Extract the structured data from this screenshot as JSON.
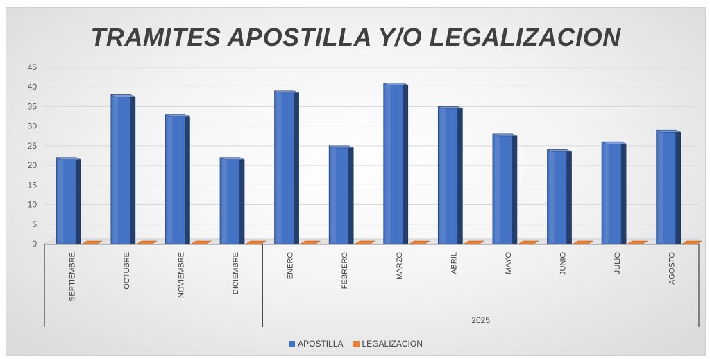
{
  "chart_data": {
    "type": "bar",
    "title": "TRAMITES APOSTILLA Y/O LEGALIZACION",
    "categories": [
      "SEPTIEMBRE",
      "OCTUBRE",
      "NOVIEMBRE",
      "DICIEMBRE",
      "ENERO",
      "FEBRERO",
      "MARZO",
      "ABRIL",
      "MAYO",
      "JUNIO",
      "JULIO",
      "AGOSTO"
    ],
    "category_groups": [
      {
        "label": "",
        "count": 4
      },
      {
        "label": "2025",
        "count": 8
      }
    ],
    "series": [
      {
        "name": "APOSTILLA",
        "color": "#4472c4",
        "values": [
          22,
          38,
          33,
          22,
          39,
          25,
          41,
          35,
          28,
          24,
          26,
          29
        ]
      },
      {
        "name": "LEGALIZACION",
        "color": "#ed7d31",
        "values": [
          0,
          0,
          0,
          0,
          0,
          0,
          0,
          0,
          0,
          0,
          0,
          0
        ]
      }
    ],
    "yticks": [
      0,
      5,
      10,
      15,
      20,
      25,
      30,
      35,
      40,
      45
    ],
    "ylim": [
      0,
      45
    ],
    "grid": true,
    "legend_position": "bottom",
    "style": "3d-column"
  }
}
